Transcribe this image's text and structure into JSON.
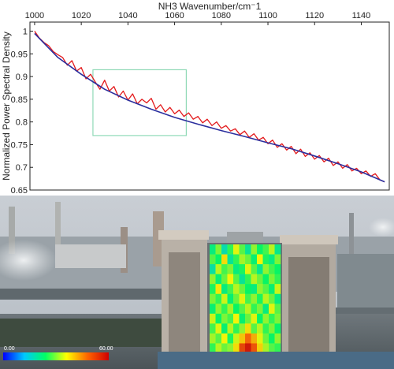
{
  "chart_data": {
    "type": "line",
    "title": "",
    "xlabel": "NH3 Wavenumber/cm⁻1",
    "ylabel": "Normalized Power Spectral Density",
    "xlim": [
      998,
      1152
    ],
    "ylim": [
      0.65,
      1.02
    ],
    "xticks": [
      1000,
      1020,
      1040,
      1060,
      1080,
      1100,
      1120,
      1140
    ],
    "xtick_labels": [
      "1000",
      "1020",
      "1040",
      "1060",
      "1080",
      "1100",
      "1120",
      "1140"
    ],
    "yticks": [
      0.65,
      0.7,
      0.75,
      0.8,
      0.85,
      0.9,
      0.95,
      1.0
    ],
    "ytick_labels": [
      "0.65",
      "0.7",
      "0.75",
      "0.8",
      "0.85",
      "0.9",
      "0.95",
      "1"
    ],
    "x_axis_position": "top",
    "grid": false,
    "series": [
      {
        "color": "#e31a1c",
        "style": "noisy measured spectrum",
        "x": [
          1000,
          1002,
          1004,
          1006,
          1008,
          1010,
          1012,
          1014,
          1016,
          1018,
          1020,
          1022,
          1024,
          1026,
          1028,
          1030,
          1032,
          1034,
          1036,
          1038,
          1040,
          1042,
          1044,
          1046,
          1048,
          1050,
          1052,
          1054,
          1056,
          1058,
          1060,
          1062,
          1064,
          1066,
          1068,
          1070,
          1072,
          1074,
          1076,
          1078,
          1080,
          1082,
          1084,
          1086,
          1088,
          1090,
          1092,
          1094,
          1096,
          1098,
          1100,
          1102,
          1104,
          1106,
          1108,
          1110,
          1112,
          1114,
          1116,
          1118,
          1120,
          1122,
          1124,
          1126,
          1128,
          1130,
          1132,
          1134,
          1136,
          1138,
          1140,
          1142,
          1144,
          1146,
          1148,
          1150
        ],
        "values": [
          1.0,
          0.985,
          0.975,
          0.968,
          0.955,
          0.948,
          0.942,
          0.925,
          0.935,
          0.912,
          0.92,
          0.895,
          0.905,
          0.888,
          0.872,
          0.892,
          0.868,
          0.878,
          0.855,
          0.868,
          0.848,
          0.862,
          0.84,
          0.85,
          0.842,
          0.852,
          0.828,
          0.838,
          0.822,
          0.832,
          0.818,
          0.826,
          0.812,
          0.82,
          0.806,
          0.812,
          0.798,
          0.806,
          0.792,
          0.8,
          0.786,
          0.792,
          0.78,
          0.785,
          0.772,
          0.78,
          0.766,
          0.774,
          0.76,
          0.766,
          0.752,
          0.76,
          0.744,
          0.752,
          0.738,
          0.746,
          0.73,
          0.74,
          0.724,
          0.732,
          0.718,
          0.726,
          0.712,
          0.72,
          0.704,
          0.712,
          0.698,
          0.706,
          0.692,
          0.698,
          0.686,
          0.692,
          0.68,
          0.686,
          0.672,
          0.668
        ]
      },
      {
        "color": "#2b2f9e",
        "style": "smooth fitted curve",
        "x": [
          1000,
          1010,
          1020,
          1030,
          1040,
          1050,
          1060,
          1070,
          1080,
          1090,
          1100,
          1110,
          1120,
          1130,
          1140,
          1150
        ],
        "values": [
          0.995,
          0.942,
          0.905,
          0.872,
          0.848,
          0.828,
          0.81,
          0.795,
          0.781,
          0.768,
          0.754,
          0.741,
          0.725,
          0.708,
          0.69,
          0.668
        ]
      }
    ],
    "annotation_box": {
      "x_range": [
        1025,
        1065
      ],
      "y_range": [
        0.77,
        0.915
      ],
      "color": "#8fd9b6"
    }
  },
  "photo": {
    "description_free": true,
    "colorbar": {
      "min_label": "0.00",
      "max_label": "60.00",
      "stops": [
        "#0000ff",
        "#00c8ff",
        "#00ff64",
        "#ffff00",
        "#ff6400",
        "#d00000"
      ]
    },
    "heatmap": {
      "cells": [
        [
          22,
          30,
          18,
          26,
          35,
          28,
          20,
          31,
          24,
          27,
          33,
          21
        ],
        [
          28,
          24,
          38,
          20,
          26,
          32,
          29,
          23,
          36,
          25,
          22,
          30
        ],
        [
          19,
          33,
          27,
          30,
          22,
          25,
          35,
          28,
          21,
          31,
          27,
          24
        ],
        [
          31,
          23,
          29,
          36,
          28,
          20,
          26,
          33,
          29,
          24,
          30,
          26
        ],
        [
          25,
          37,
          22,
          27,
          33,
          29,
          24,
          22,
          31,
          28,
          23,
          34
        ],
        [
          30,
          26,
          34,
          23,
          29,
          35,
          27,
          31,
          25,
          33,
          29,
          22
        ],
        [
          23,
          31,
          26,
          32,
          24,
          28,
          33,
          26,
          30,
          22,
          35,
          28
        ],
        [
          34,
          24,
          30,
          27,
          36,
          23,
          29,
          35,
          24,
          31,
          26,
          30
        ],
        [
          27,
          35,
          23,
          33,
          26,
          31,
          38,
          28,
          33,
          26,
          30,
          24
        ],
        [
          32,
          28,
          36,
          25,
          34,
          40,
          48,
          42,
          35,
          29,
          24,
          31
        ],
        [
          26,
          33,
          29,
          31,
          38,
          52,
          58,
          50,
          39,
          32,
          28,
          26
        ]
      ]
    }
  }
}
